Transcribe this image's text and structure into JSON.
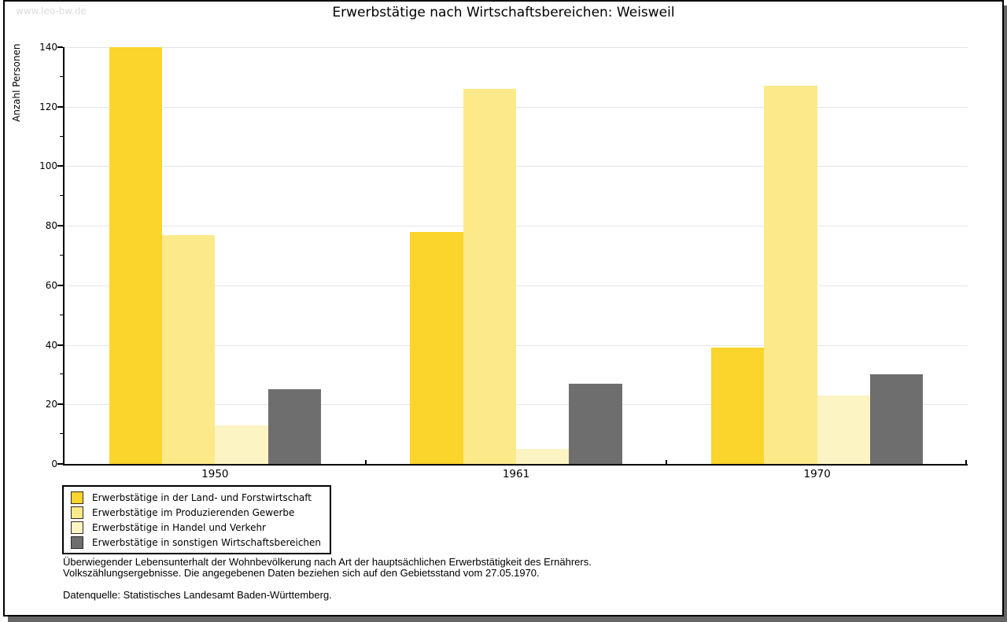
{
  "watermark": "www.leo-bw.de",
  "chart_data": {
    "type": "bar",
    "title": "Erwerbstätige nach Wirtschaftsbereichen: Weisweil",
    "ylabel": "Anzahl Personen",
    "xlabel": "",
    "ylim": [
      0,
      140
    ],
    "ytick_step_major": 20,
    "ytick_step_minor": 10,
    "grid": true,
    "legend_position": "bottom-left",
    "categories": [
      "1950",
      "1961",
      "1970"
    ],
    "series": [
      {
        "name": "Erwerbstätige in der Land- und Forstwirtschaft",
        "color": "#fbd42c",
        "values": [
          140,
          78,
          39
        ]
      },
      {
        "name": "Erwerbstätige im Produzierenden Gewerbe",
        "color": "#fce98a",
        "values": [
          77,
          126,
          127
        ]
      },
      {
        "name": "Erwerbstätige in Handel und Verkehr",
        "color": "#fdf4c3",
        "values": [
          13,
          5,
          23
        ]
      },
      {
        "name": "Erwerbstätige in sonstigen Wirtschaftsbereichen",
        "color": "#6e6e6e",
        "values": [
          25,
          27,
          30
        ]
      }
    ]
  },
  "footnotes": {
    "line1": "Überwiegender Lebensunterhalt der Wohnbevölkerung nach Art der hauptsächlichen Erwerbstätigkeit des Ernährers.",
    "line2": "Volkszählungsergebnisse. Die angegebenen Daten beziehen sich auf den Gebietsstand vom 27.05.1970.",
    "source": "Datenquelle: Statistisches Landesamt Baden-Württemberg."
  },
  "colors": {
    "axis": "#000000",
    "grid": "#e6e6e6",
    "watermark_text": "#dcdcdc",
    "window_shadow": "#666666"
  }
}
